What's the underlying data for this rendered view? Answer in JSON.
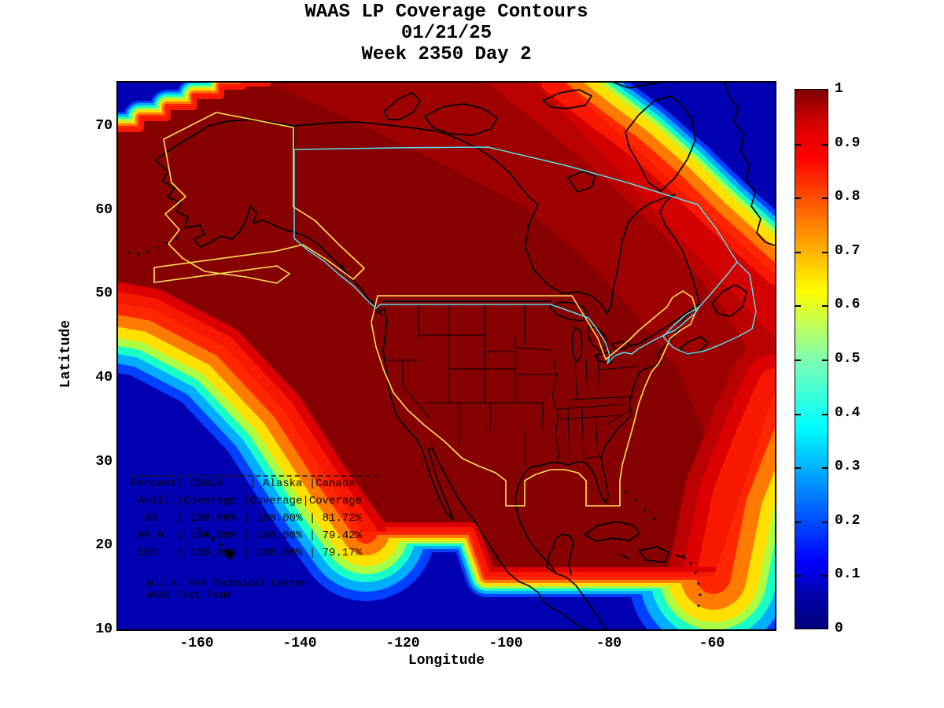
{
  "title": {
    "line1": "WAAS LP Coverage Contours",
    "line2": "01/21/25",
    "line3": "Week 2350 Day 2"
  },
  "axes": {
    "xlabel": "Longitude",
    "ylabel": "Latitude",
    "xticks": [
      "-160",
      "-140",
      "-120",
      "-100",
      "-80",
      "-60"
    ],
    "yticks": [
      "70",
      "60",
      "50",
      "40",
      "30",
      "20",
      "10"
    ]
  },
  "colorbar": {
    "colormap": "jet",
    "min": 0,
    "max": 1,
    "tick_labels": [
      "1",
      "0.9",
      "0.8",
      "0.7",
      "0.6",
      "0.5",
      "0.4",
      "0.3",
      "0.2",
      "0.1",
      "0"
    ]
  },
  "overlay": {
    "table_lines": [
      "Percent| CONUS    | Alaska |Canada",
      " Avail.|Coverage |Coverage|Coverage",
      "  99   | 100.00% | 100.00% | 81.72%",
      " 99.9  | 100.00% | 100.00% | 79.42%",
      " 100   | 100.00% | 100.00% | 79.17%"
    ],
    "credit_lines": [
      "W.J.H. FAA Technical Center",
      "WAAS Test Team"
    ]
  },
  "chart_data": {
    "type": "heatmap",
    "title": "WAAS LP Coverage Contours",
    "date": "01/21/25",
    "gps_week": "Week 2350 Day 2",
    "xlabel": "Longitude",
    "ylabel": "Latitude",
    "xlim": [
      -175,
      -48
    ],
    "ylim": [
      10,
      75
    ],
    "xticks": [
      -160,
      -140,
      -120,
      -100,
      -80,
      -60
    ],
    "yticks": [
      10,
      20,
      30,
      40,
      50,
      60,
      70
    ],
    "colorbar_range": [
      0,
      1
    ],
    "colorbar_ticks": [
      0,
      0.1,
      0.2,
      0.3,
      0.4,
      0.5,
      0.6,
      0.7,
      0.8,
      0.9,
      1
    ],
    "colormap": "jet",
    "legend_position": "right",
    "grid": false,
    "description": "Filled contour map of WAAS LP service coverage probability over North America. Dark red (1.0) covers CONUS, Alaska, Canada and Mexico; blue (0) over open ocean (NW Pacific corner, Arctic/Greenland NE corner, south of ~17N, SE Atlantic). Rainbow transition bands (0.1-0.9) fan along the Pacific SW edge, Atlantic SE edge, Arctic NE edge and a stair-stepped NW corner. Outlines: black coastlines and state borders, yellow CONUS and Alaska coverage boundaries, cyan Canada boundary.",
    "key_colors": {
      "coverage_1": "#870000",
      "coverage_0_ocean": "#0000b2",
      "conus_alaska_boundary": "#ffe34d",
      "canada_boundary": "#55e0e8",
      "coastline": "#000000"
    },
    "stats_table": {
      "columns": [
        "Percent Avail.",
        "CONUS Coverage",
        "Alaska Coverage",
        "Canada Coverage"
      ],
      "rows": [
        [
          "99",
          "100.00%",
          "100.00%",
          "81.72%"
        ],
        [
          "99.9",
          "100.00%",
          "100.00%",
          "79.42%"
        ],
        [
          "100",
          "100.00%",
          "100.00%",
          "79.17%"
        ]
      ]
    },
    "credit": "W.J.H. FAA Technical Center / WAAS Test Team"
  }
}
